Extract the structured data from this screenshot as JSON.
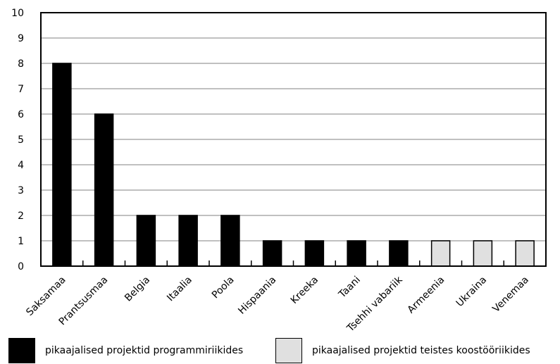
{
  "chart_data": {
    "type": "bar",
    "categories": [
      "Saksamaa",
      "Prantsusmaa",
      "Belgia",
      "Itaalia",
      "Poola",
      "Hispaania",
      "Kreeka",
      "Taani",
      "Tsehhi vabariik",
      "Armeenia",
      "Ukraina",
      "Venemaa"
    ],
    "values": [
      8,
      6,
      2,
      2,
      2,
      1,
      1,
      1,
      1,
      1,
      1,
      1
    ],
    "groups": [
      "programme",
      "programme",
      "programme",
      "programme",
      "programme",
      "programme",
      "programme",
      "programme",
      "programme",
      "other",
      "other",
      "other"
    ],
    "ylim": [
      0,
      10
    ],
    "yticks": [
      0,
      1,
      2,
      3,
      4,
      5,
      6,
      7,
      8,
      9,
      10
    ],
    "grid": true,
    "legend_position": "bottom",
    "colors": {
      "programme": "#000000",
      "other": "#e0e0e0",
      "grid": "#c0c0c0"
    },
    "title": "",
    "xlabel": "",
    "ylabel": ""
  },
  "legend": [
    {
      "key": "programme",
      "label": "pikaajalised projektid programmiriikides"
    },
    {
      "key": "other",
      "label": "pikaajalised projektid teistes koostööriikides"
    }
  ]
}
